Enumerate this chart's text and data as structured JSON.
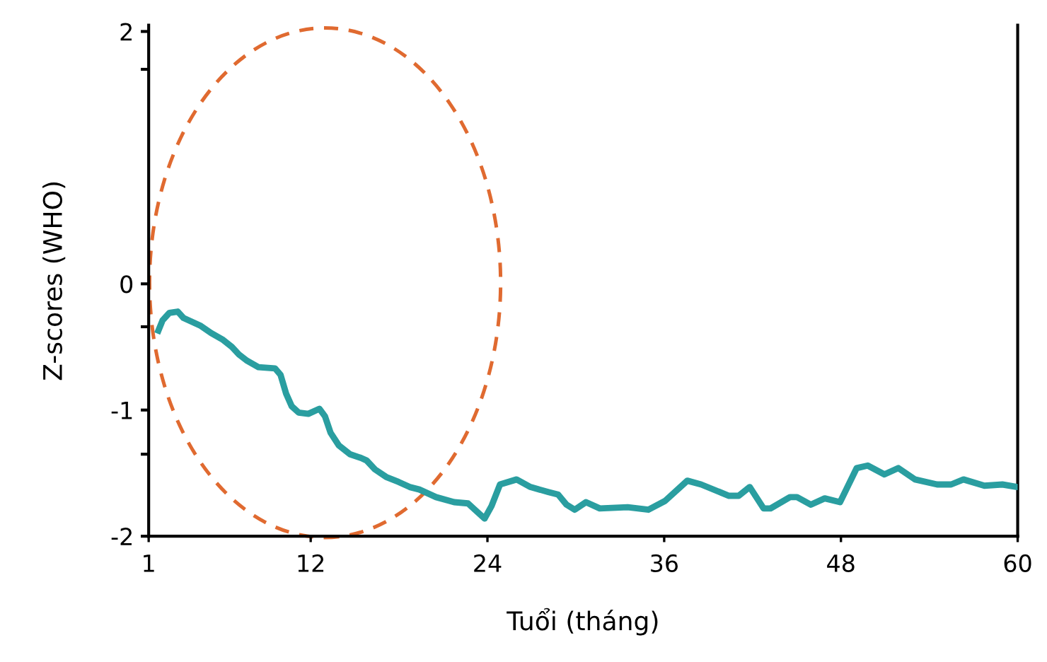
{
  "chart_data": {
    "type": "line",
    "xlabel": "Tuổi (tháng)",
    "ylabel": "Z-scores (WHO)",
    "xlim": [
      1,
      60
    ],
    "xticks": [
      1,
      12,
      24,
      36,
      48,
      60
    ],
    "ylim": [
      -2,
      2.05
    ],
    "yticks": [
      -2,
      -1,
      0,
      2,
      {
        "value": 1.7,
        "label": null
      },
      {
        "value": -0.34,
        "label": null
      },
      {
        "value": -1.35,
        "label": null
      }
    ],
    "grid": false,
    "legend": false,
    "marker": "none",
    "line_style": "solid",
    "series": [
      {
        "color": "#2a9ea0",
        "x": [
          1.66,
          1.94,
          2.41,
          2.98,
          3.36,
          4.49,
          5.24,
          6.0,
          6.65,
          7.13,
          7.69,
          8.45,
          9.58,
          9.95,
          10.33,
          10.71,
          11.18,
          11.84,
          12.59,
          12.97,
          13.35,
          13.91,
          14.67,
          15.42,
          15.8,
          16.36,
          17.12,
          17.97,
          18.72,
          19.38,
          20.51,
          21.74,
          22.68,
          23.15,
          23.81,
          24.28,
          24.85,
          25.98,
          26.92,
          28.14,
          28.8,
          29.37,
          29.93,
          30.69,
          31.63,
          33.52,
          34.93,
          36.06,
          37.57,
          38.51,
          40.4,
          41.06,
          41.81,
          42.75,
          43.22,
          44.54,
          45.02,
          45.96,
          46.9,
          47.94,
          49.07,
          49.82,
          50.95,
          51.9,
          53.03,
          54.53,
          55.48,
          56.32,
          57.74,
          58.96,
          60.0
        ],
        "values": [
          -0.37,
          -0.29,
          -0.23,
          -0.22,
          -0.27,
          -0.33,
          -0.39,
          -0.44,
          -0.5,
          -0.56,
          -0.61,
          -0.66,
          -0.67,
          -0.72,
          -0.87,
          -0.97,
          -1.02,
          -1.03,
          -0.99,
          -1.05,
          -1.18,
          -1.28,
          -1.35,
          -1.38,
          -1.4,
          -1.47,
          -1.53,
          -1.57,
          -1.61,
          -1.63,
          -1.69,
          -1.73,
          -1.74,
          -1.79,
          -1.86,
          -1.76,
          -1.59,
          -1.55,
          -1.61,
          -1.65,
          -1.67,
          -1.75,
          -1.79,
          -1.73,
          -1.78,
          -1.77,
          -1.79,
          -1.72,
          -1.56,
          -1.59,
          -1.68,
          -1.68,
          -1.61,
          -1.78,
          -1.78,
          -1.69,
          -1.69,
          -1.75,
          -1.7,
          -1.73,
          -1.46,
          -1.44,
          -1.51,
          -1.46,
          -1.55,
          -1.59,
          -1.59,
          -1.55,
          -1.6,
          -1.59,
          -1.61
        ]
      }
    ]
  }
}
